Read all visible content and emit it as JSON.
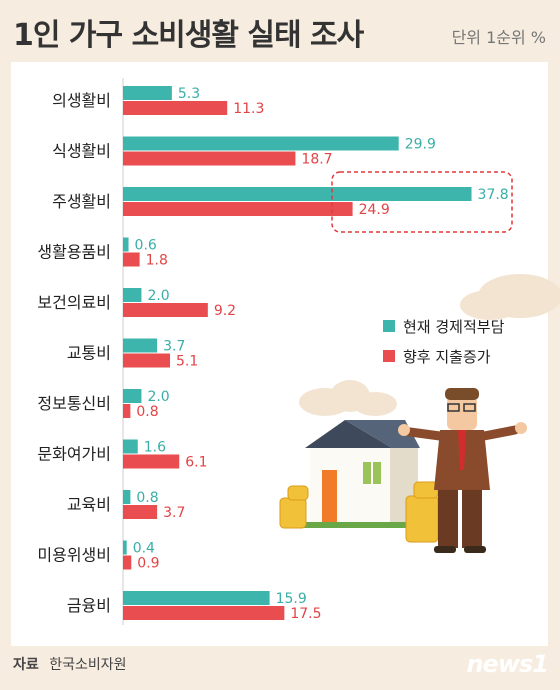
{
  "title": "1인 가구 소비생활 실태 조사",
  "unit_label": "단위 1순위 %",
  "source_label": "자료",
  "source_value": "한국소비자원",
  "logo_text": "news1",
  "colors": {
    "current": "#3db5ad",
    "future": "#ea4d4f",
    "highlight": "#e0383a",
    "panel": "#ffffff",
    "background": "#f6ecdf"
  },
  "chart_data": {
    "type": "bar",
    "orientation": "horizontal",
    "categories": [
      "의생활비",
      "식생활비",
      "주생활비",
      "생활용품비",
      "보건의료비",
      "교통비",
      "정보통신비",
      "문화여가비",
      "교육비",
      "미용위생비",
      "금융비"
    ],
    "series": [
      {
        "name": "현재 경제적부담",
        "values": [
          5.3,
          29.9,
          37.8,
          0.6,
          2.0,
          3.7,
          2.0,
          1.6,
          0.8,
          0.4,
          15.9
        ]
      },
      {
        "name": "향후 지출증가",
        "values": [
          11.3,
          18.7,
          24.9,
          1.8,
          9.2,
          5.1,
          0.8,
          6.1,
          3.7,
          0.9,
          17.5
        ]
      }
    ],
    "value_labels": [
      [
        "5.3",
        "29.9",
        "37.8",
        "0.6",
        "2.0",
        "3.7",
        "2.0",
        "1.6",
        "0.8",
        "0.4",
        "15.9"
      ],
      [
        "11.3",
        "18.7",
        "24.9",
        "1.8",
        "9.2",
        "5.1",
        "0.8",
        "6.1",
        "3.7",
        "0.9",
        "17.5"
      ]
    ],
    "title": "",
    "xlabel": "",
    "ylabel": "",
    "xlim": [
      0,
      40
    ],
    "legend_position": "right",
    "highlighted_category": "주생활비"
  }
}
